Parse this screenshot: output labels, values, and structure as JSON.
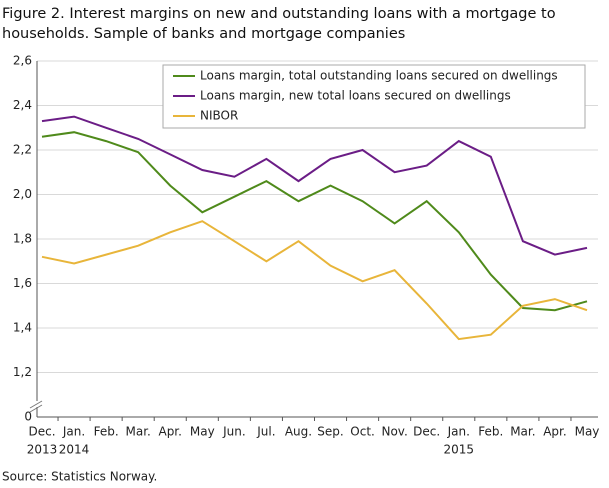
{
  "chart_data": {
    "type": "line",
    "title": [
      "Figure 2. Interest margins on new and outstanding loans with a mortgage to",
      "households. Sample of banks and mortgage companies"
    ],
    "source": "Source: Statistics Norway.",
    "categories": [
      "Dec.",
      "Jan.",
      "Feb.",
      "Mar.",
      "Apr.",
      "May",
      "Jun.",
      "Jul.",
      "Aug.",
      "Sep.",
      "Oct.",
      "Nov.",
      "Dec.",
      "Jan.",
      "Feb.",
      "Mar.",
      "Apr.",
      "May"
    ],
    "years": [
      "2013",
      "2014",
      null,
      null,
      null,
      null,
      null,
      null,
      null,
      null,
      null,
      null,
      null,
      "2015",
      null,
      null,
      null,
      null
    ],
    "series": [
      {
        "name": "Loans margin, total outstanding loans secured on dwellings",
        "color": "#4f8a1b",
        "values": [
          2.26,
          2.28,
          2.24,
          2.19,
          2.04,
          1.92,
          1.99,
          2.06,
          1.97,
          2.04,
          1.97,
          1.87,
          1.97,
          1.83,
          1.64,
          1.49,
          1.48,
          1.52
        ]
      },
      {
        "name": "Loans margin, new total loans secured on dwellings",
        "color": "#6b1d86",
        "values": [
          2.33,
          2.35,
          2.3,
          2.25,
          2.18,
          2.11,
          2.08,
          2.16,
          2.06,
          2.16,
          2.2,
          2.1,
          2.13,
          2.24,
          2.17,
          1.79,
          1.73,
          1.76
        ]
      },
      {
        "name": "NIBOR",
        "color": "#e8b53a",
        "values": [
          1.72,
          1.69,
          1.73,
          1.77,
          1.83,
          1.88,
          1.79,
          1.7,
          1.79,
          1.68,
          1.61,
          1.66,
          1.51,
          1.35,
          1.37,
          1.5,
          1.53,
          1.48
        ]
      }
    ],
    "ylim": [
      0,
      2.6
    ],
    "yticks": [
      0,
      {
        "value": 1.2,
        "label": "1,2"
      },
      {
        "value": 1.4,
        "label": "1,4"
      },
      {
        "value": 1.6,
        "label": "1,6"
      },
      {
        "value": 1.8,
        "label": "1,8"
      },
      {
        "value": 2.0,
        "label": "2,0"
      },
      {
        "value": 2.2,
        "label": "2,2"
      },
      {
        "value": 2.4,
        "label": "2,4"
      },
      {
        "value": 2.6,
        "label": "2,6"
      }
    ],
    "axis_break": true,
    "grid": true,
    "legend": "top-right"
  }
}
